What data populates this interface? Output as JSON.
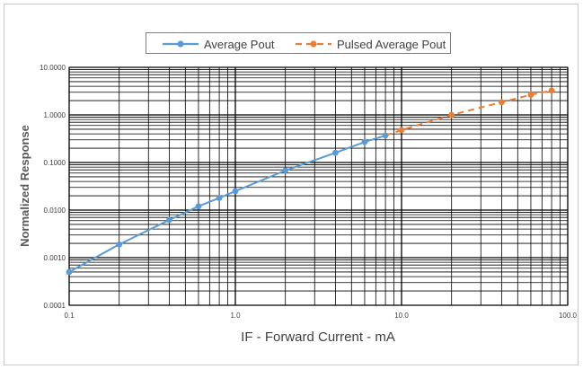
{
  "chart_data": {
    "type": "line",
    "title": "",
    "xlabel": "IF - Forward Current - mA",
    "ylabel": "Normalized Response",
    "xscale": "log",
    "yscale": "log",
    "xlim": [
      0.1,
      100
    ],
    "ylim": [
      0.0001,
      10
    ],
    "x_tick_labels": [
      "0.1",
      "1.0",
      "10.0",
      "100.0"
    ],
    "y_tick_labels": [
      "0.0001",
      "0.0010",
      "0.0100",
      "0.1000",
      "1.0000",
      "10.0000"
    ],
    "grid": true,
    "legend_position": "top-center",
    "series": [
      {
        "name": "Average Pout",
        "color": "#5b9bd5",
        "line_style": "solid",
        "marker": "circle",
        "x": [
          0.1,
          0.2,
          0.4,
          0.6,
          0.8,
          1.0,
          2.0,
          4.0,
          6.0,
          8.0
        ],
        "y": [
          0.0005,
          0.0019,
          0.0062,
          0.012,
          0.018,
          0.025,
          0.068,
          0.16,
          0.27,
          0.37
        ]
      },
      {
        "name": "Pulsed Average Pout",
        "color": "#ed7d31",
        "line_style": "dashed",
        "marker": "circle",
        "x": [
          10,
          20,
          40,
          60,
          80
        ],
        "y": [
          0.48,
          1.0,
          1.85,
          2.65,
          3.25
        ]
      }
    ]
  }
}
